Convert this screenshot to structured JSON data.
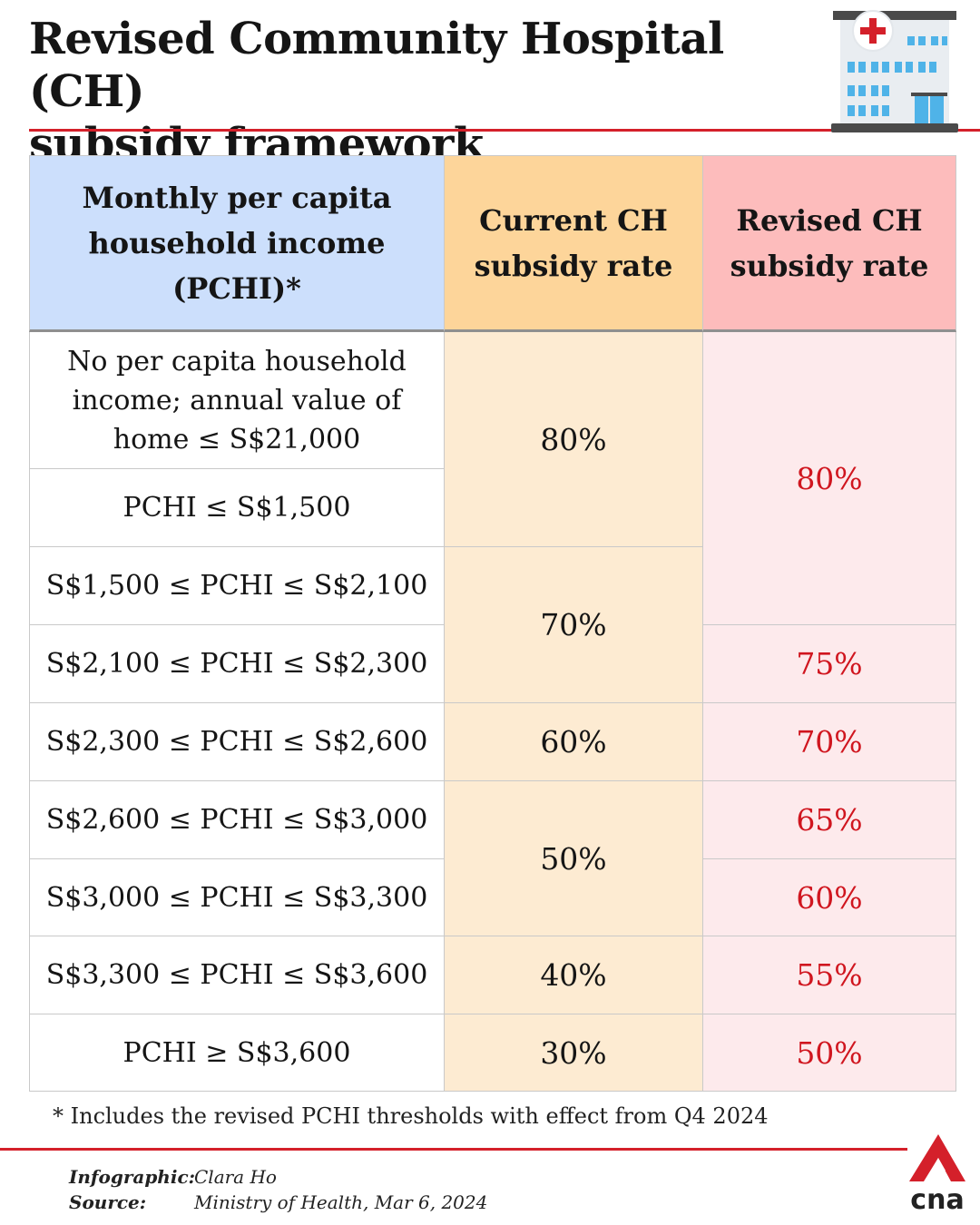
{
  "title_line1": "Revised Community Hospital (CH)",
  "title_line2": "subsidy framework",
  "table": {
    "headers": {
      "income": [
        "Monthly per capita",
        "household income",
        "(PCHI)*"
      ],
      "current": [
        "Current CH",
        "subsidy rate"
      ],
      "revised": [
        "Revised CH",
        "subsidy rate"
      ]
    },
    "income_rows": [
      [
        "No per capita household",
        "income; annual value of",
        "home ≤ S$21,000"
      ],
      [
        "PCHI ≤ S$1,500"
      ],
      [
        "S$1,500 ≤ PCHI ≤ S$2,100"
      ],
      [
        "S$2,100 ≤ PCHI ≤ S$2,300"
      ],
      [
        "S$2,300 ≤ PCHI ≤ S$2,600"
      ],
      [
        "S$2,600 ≤ PCHI ≤ S$3,000"
      ],
      [
        "S$3,000 ≤ PCHI ≤ S$3,300"
      ],
      [
        "S$3,300 ≤ PCHI ≤ S$3,600"
      ],
      [
        "PCHI ≥ S$3,600"
      ]
    ],
    "current_rates": [
      "80%",
      "70%",
      "60%",
      "50%",
      "40%",
      "30%"
    ],
    "revised_rates": [
      "80%",
      "75%",
      "70%",
      "65%",
      "60%",
      "55%",
      "50%"
    ]
  },
  "footnote": "*  Includes the revised PCHI thresholds with effect from Q4 2024",
  "credits": {
    "infographic_label": "Infographic:",
    "infographic_value": "Clara Ho",
    "source_label": "Source:",
    "source_value": "Ministry of Health, Mar 6, 2024"
  },
  "logo_text": "cna",
  "colors": {
    "accent_red": "#d4202a",
    "revised_text": "#d0161f",
    "header_blue": "#ccdffc",
    "header_orange": "#fdd59a",
    "header_pink": "#fdbcbc",
    "cell_orange": "#fdebd2",
    "cell_pink": "#fdeaec"
  },
  "icons": {
    "hospital": "hospital-building-icon",
    "logo": "cna-logo-icon"
  }
}
